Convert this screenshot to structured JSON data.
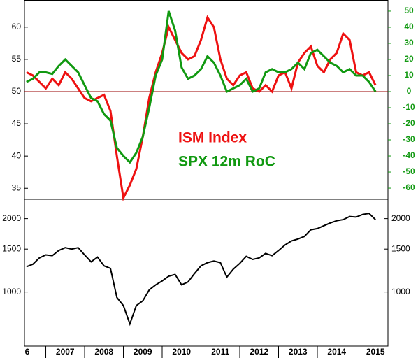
{
  "chart_data": [
    {
      "type": "line",
      "x": [
        2006.5,
        2006.667,
        2006.833,
        2007,
        2007.167,
        2007.333,
        2007.5,
        2007.667,
        2007.833,
        2008,
        2008.167,
        2008.333,
        2008.5,
        2008.667,
        2008.833,
        2009,
        2009.167,
        2009.333,
        2009.5,
        2009.667,
        2009.833,
        2010,
        2010.167,
        2010.333,
        2010.5,
        2010.667,
        2010.833,
        2011,
        2011.167,
        2011.333,
        2011.5,
        2011.667,
        2011.833,
        2012,
        2012.167,
        2012.333,
        2012.5,
        2012.667,
        2012.833,
        2013,
        2013.167,
        2013.333,
        2013.5,
        2013.667,
        2013.833,
        2014,
        2014.167,
        2014.333,
        2014.5,
        2014.667,
        2014.833,
        2015,
        2015.167,
        2015.333,
        2015.5
      ],
      "series": [
        {
          "name": "ISM Index",
          "color": "#ee1111",
          "values": [
            53,
            52.5,
            51.5,
            50.5,
            52,
            51,
            53,
            52,
            50.5,
            49,
            48.5,
            49,
            49.5,
            47,
            40,
            33.5,
            35.5,
            38,
            43,
            49,
            53,
            56,
            60,
            58,
            56,
            55,
            55.5,
            58,
            61.5,
            60,
            55,
            52,
            51,
            52.5,
            53,
            50.5,
            50,
            51,
            50,
            52.5,
            53,
            50.5,
            54.5,
            56,
            57,
            54,
            53,
            55,
            56,
            59,
            58,
            53,
            52.5,
            53,
            51
          ]
        },
        {
          "name": "SPX 12m RoC",
          "color": "#119911",
          "axis": "y2",
          "values": [
            6,
            8,
            12,
            12,
            11,
            16,
            20,
            16,
            12,
            4,
            -4,
            -6,
            -14,
            -18,
            -35,
            -40,
            -44,
            -38,
            -28,
            -10,
            10,
            20,
            50,
            38,
            15,
            8,
            10,
            14,
            22,
            18,
            10,
            0,
            2,
            4,
            8,
            0,
            2,
            12,
            14,
            12,
            12,
            14,
            18,
            14,
            24,
            26,
            22,
            18,
            16,
            12,
            14,
            10,
            10,
            6,
            0
          ]
        }
      ],
      "xlim": [
        2006.45,
        2015.82
      ],
      "ylim": [
        33.4,
        64.1
      ],
      "yticks": [
        35,
        40,
        45,
        50,
        55,
        60
      ],
      "y2lim": [
        -66.5,
        56.5
      ],
      "y2ticks": [
        -60,
        -50,
        -40,
        -30,
        -20,
        -10,
        0,
        10,
        20,
        30,
        40,
        50
      ],
      "hline": 50,
      "hline_color": "#990000"
    },
    {
      "type": "line",
      "x": [
        2006.5,
        2006.667,
        2006.833,
        2007,
        2007.167,
        2007.333,
        2007.5,
        2007.667,
        2007.833,
        2008,
        2008.167,
        2008.333,
        2008.5,
        2008.667,
        2008.833,
        2009,
        2009.167,
        2009.333,
        2009.5,
        2009.667,
        2009.833,
        2010,
        2010.167,
        2010.333,
        2010.5,
        2010.667,
        2010.833,
        2011,
        2011.167,
        2011.333,
        2011.5,
        2011.667,
        2011.833,
        2012,
        2012.167,
        2012.333,
        2012.5,
        2012.667,
        2012.833,
        2013,
        2013.167,
        2013.333,
        2013.5,
        2013.667,
        2013.833,
        2014,
        2014.167,
        2014.333,
        2014.5,
        2014.667,
        2014.833,
        2015,
        2015.167,
        2015.333,
        2015.5
      ],
      "series": [
        {
          "color": "#000000",
          "values": [
            1270,
            1300,
            1380,
            1420,
            1410,
            1480,
            1520,
            1500,
            1520,
            1420,
            1330,
            1390,
            1280,
            1250,
            950,
            880,
            740,
            880,
            920,
            1020,
            1070,
            1110,
            1160,
            1180,
            1070,
            1100,
            1190,
            1280,
            1320,
            1340,
            1320,
            1150,
            1240,
            1310,
            1400,
            1360,
            1380,
            1440,
            1410,
            1480,
            1560,
            1620,
            1650,
            1690,
            1800,
            1820,
            1870,
            1920,
            1960,
            1980,
            2040,
            2030,
            2080,
            2100,
            1980
          ]
        }
      ],
      "xlim": [
        2006.45,
        2015.82
      ],
      "ylim": [
        600,
        2400
      ],
      "log_scale": true,
      "yticks": [
        1000,
        1500,
        2000
      ],
      "xticks": [
        {
          "value": 2006,
          "label": "6"
        },
        2007,
        2008,
        2009,
        2010,
        2011,
        2012,
        2013,
        2014,
        2015
      ]
    }
  ]
}
